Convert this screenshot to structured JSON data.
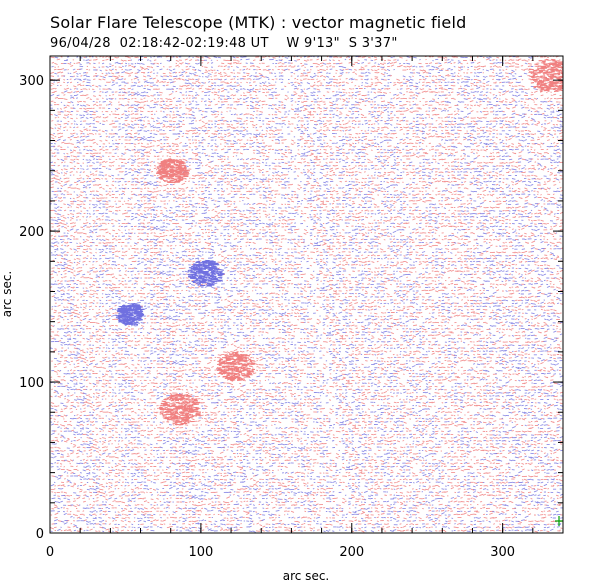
{
  "chart_data": {
    "type": "vector-field",
    "title": "Solar Flare Telescope (MTK) : vector magnetic field",
    "subtitle": "96/04/28  02:18:42-02:19:48 UT    W 9'13\"  S 3'37\"",
    "xlabel": "arc sec.",
    "ylabel": "arc sec.",
    "xlim": [
      0,
      340
    ],
    "ylim": [
      0,
      316
    ],
    "xticks": [
      0,
      100,
      200,
      300
    ],
    "yticks": [
      0,
      100,
      200,
      300
    ],
    "x_minor_step": 20,
    "y_minor_step": 20,
    "colors": {
      "positive": "#f08080",
      "negative": "#7070e0",
      "frame": "#000000",
      "marker": "#00a000"
    },
    "concentrations": [
      {
        "polarity": "positive",
        "x": 122,
        "y": 110,
        "radius": 12
      },
      {
        "polarity": "positive",
        "x": 85,
        "y": 82,
        "radius": 13
      },
      {
        "polarity": "negative",
        "x": 102,
        "y": 172,
        "radius": 11
      },
      {
        "polarity": "negative",
        "x": 52,
        "y": 145,
        "radius": 9
      },
      {
        "polarity": "positive",
        "x": 330,
        "y": 303,
        "radius": 14
      },
      {
        "polarity": "positive",
        "x": 80,
        "y": 240,
        "radius": 10
      }
    ]
  }
}
